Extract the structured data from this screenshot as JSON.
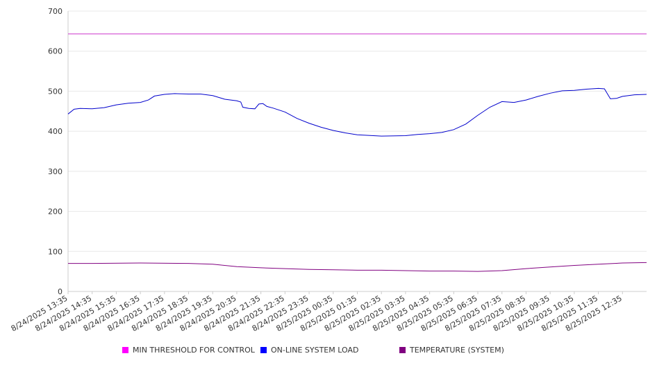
{
  "chart_data": {
    "type": "line",
    "y_ticks": [
      0,
      100,
      200,
      300,
      400,
      500,
      600,
      700
    ],
    "ylim": [
      0,
      700
    ],
    "grid": "horizontal",
    "legend_position": "bottom",
    "x_tick_labels": [
      "8/24/2025 13:35",
      "8/24/2025 14:35",
      "8/24/2025 15:35",
      "8/24/2025 16:35",
      "8/24/2025 17:35",
      "8/24/2025 18:35",
      "8/24/2025 19:35",
      "8/24/2025 20:35",
      "8/24/2025 21:35",
      "8/24/2025 22:35",
      "8/24/2025 23:35",
      "8/25/2025 00:35",
      "8/25/2025 01:35",
      "8/25/2025 02:35",
      "8/25/2025 03:35",
      "8/25/2025 04:35",
      "8/25/2025 05:35",
      "8/25/2025 06:35",
      "8/25/2025 07:35",
      "8/25/2025 08:35",
      "8/25/2025 09:35",
      "8/25/2025 10:35",
      "8/25/2025 11:35",
      "8/25/2025 12:35"
    ],
    "x_range": [
      "8/24/2025 13:35",
      "8/25/2025 13:35"
    ],
    "series": [
      {
        "name": "MIN THRESHOLD FOR CONTROL",
        "color": "#cc33cc",
        "legend_color": "#ff00ff",
        "points": [
          [
            "8/24/2025 13:35",
            643
          ],
          [
            "8/25/2025 13:35",
            643
          ]
        ]
      },
      {
        "name": "ON-LINE SYSTEM LOAD",
        "color": "#0000cc",
        "legend_color": "#0000ff",
        "points": [
          [
            "8/24/2025 13:35",
            443
          ],
          [
            "8/24/2025 13:50",
            455
          ],
          [
            "8/24/2025 14:05",
            457
          ],
          [
            "8/24/2025 14:35",
            456
          ],
          [
            "8/24/2025 15:05",
            459
          ],
          [
            "8/24/2025 15:35",
            466
          ],
          [
            "8/24/2025 16:05",
            470
          ],
          [
            "8/24/2025 16:35",
            472
          ],
          [
            "8/24/2025 16:55",
            478
          ],
          [
            "8/24/2025 17:10",
            488
          ],
          [
            "8/24/2025 17:35",
            492
          ],
          [
            "8/24/2025 18:00",
            494
          ],
          [
            "8/24/2025 18:35",
            493
          ],
          [
            "8/24/2025 19:05",
            493
          ],
          [
            "8/24/2025 19:35",
            489
          ],
          [
            "8/24/2025 20:05",
            480
          ],
          [
            "8/24/2025 20:35",
            476
          ],
          [
            "8/24/2025 20:45",
            473
          ],
          [
            "8/24/2025 20:50",
            460
          ],
          [
            "8/24/2025 21:05",
            457
          ],
          [
            "8/24/2025 21:20",
            456
          ],
          [
            "8/24/2025 21:30",
            468
          ],
          [
            "8/24/2025 21:40",
            469
          ],
          [
            "8/24/2025 21:50",
            462
          ],
          [
            "8/24/2025 22:05",
            458
          ],
          [
            "8/24/2025 22:35",
            448
          ],
          [
            "8/24/2025 23:05",
            432
          ],
          [
            "8/24/2025 23:35",
            420
          ],
          [
            "8/25/2025 00:05",
            410
          ],
          [
            "8/25/2025 00:35",
            402
          ],
          [
            "8/25/2025 01:05",
            396
          ],
          [
            "8/25/2025 01:35",
            391
          ],
          [
            "8/25/2025 02:35",
            388
          ],
          [
            "8/25/2025 03:35",
            389
          ],
          [
            "8/25/2025 04:05",
            392
          ],
          [
            "8/25/2025 04:35",
            394
          ],
          [
            "8/25/2025 05:05",
            397
          ],
          [
            "8/25/2025 05:35",
            404
          ],
          [
            "8/25/2025 06:05",
            418
          ],
          [
            "8/25/2025 06:35",
            440
          ],
          [
            "8/25/2025 07:05",
            460
          ],
          [
            "8/25/2025 07:35",
            474
          ],
          [
            "8/25/2025 08:05",
            472
          ],
          [
            "8/25/2025 08:35",
            478
          ],
          [
            "8/25/2025 09:05",
            487
          ],
          [
            "8/25/2025 09:35",
            495
          ],
          [
            "8/25/2025 10:05",
            501
          ],
          [
            "8/25/2025 10:35",
            502
          ],
          [
            "8/25/2025 11:05",
            505
          ],
          [
            "8/25/2025 11:35",
            507
          ],
          [
            "8/25/2025 11:50",
            506
          ],
          [
            "8/25/2025 12:05",
            481
          ],
          [
            "8/25/2025 12:20",
            482
          ],
          [
            "8/25/2025 12:35",
            487
          ],
          [
            "8/25/2025 13:05",
            491
          ],
          [
            "8/25/2025 13:35",
            492
          ]
        ]
      },
      {
        "name": "TEMPERATURE (SYSTEM)",
        "color": "#800080",
        "legend_color": "#800080",
        "points": [
          [
            "8/24/2025 13:35",
            70
          ],
          [
            "8/24/2025 14:35",
            70
          ],
          [
            "8/24/2025 16:35",
            71
          ],
          [
            "8/24/2025 18:35",
            70
          ],
          [
            "8/24/2025 19:35",
            68
          ],
          [
            "8/24/2025 20:35",
            62
          ],
          [
            "8/24/2025 21:35",
            59
          ],
          [
            "8/24/2025 22:35",
            57
          ],
          [
            "8/24/2025 23:35",
            55
          ],
          [
            "8/25/2025 00:35",
            54
          ],
          [
            "8/25/2025 01:35",
            53
          ],
          [
            "8/25/2025 02:35",
            53
          ],
          [
            "8/25/2025 03:35",
            52
          ],
          [
            "8/25/2025 04:35",
            51
          ],
          [
            "8/25/2025 05:35",
            51
          ],
          [
            "8/25/2025 06:35",
            50
          ],
          [
            "8/25/2025 07:35",
            52
          ],
          [
            "8/25/2025 08:35",
            57
          ],
          [
            "8/25/2025 09:35",
            61
          ],
          [
            "8/25/2025 10:35",
            65
          ],
          [
            "8/25/2025 11:35",
            68
          ],
          [
            "8/25/2025 12:35",
            71
          ],
          [
            "8/25/2025 13:35",
            72
          ]
        ]
      }
    ]
  }
}
